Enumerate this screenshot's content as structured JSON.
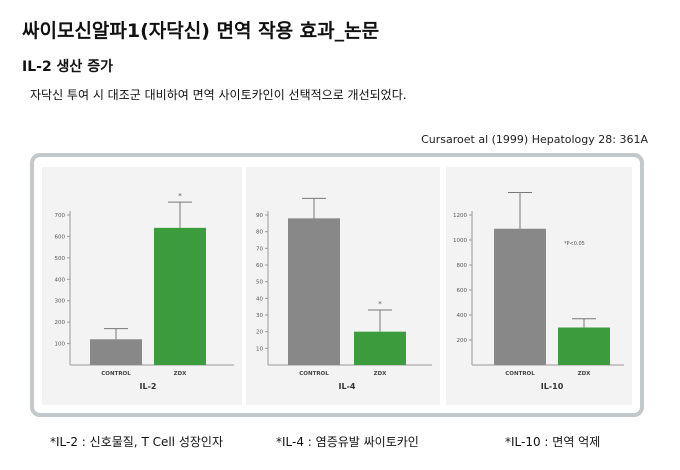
{
  "header": {
    "title": "싸이모신알파1(자닥신) 면역 작용 효과_논문",
    "subtitle": "IL-2 생산 증가",
    "description": "자닥신 투여 시 대조군 대비하여 면역 사이토카인이 선택적으로 개선되었다.",
    "citation": "Cursaroet al (1999) Hepatology 28: 361A"
  },
  "colors": {
    "control": "#888888",
    "zdx": "#3c9b3c",
    "frame": "#c3c8cc",
    "panel_bg": "#f3f3f3"
  },
  "chart_data": [
    {
      "type": "bar",
      "xlabel": "IL-2",
      "categories": [
        "CONTROL",
        "ZDX"
      ],
      "values": [
        120,
        640
      ],
      "error_upper": [
        170,
        760
      ],
      "significance": [
        "",
        "*"
      ],
      "ylim": [
        0,
        700
      ],
      "yticks": [
        100,
        200,
        300,
        400,
        500,
        600,
        700
      ],
      "ytick_labels": [
        "100",
        "200",
        "300",
        "400",
        "500",
        "600",
        "700"
      ],
      "note": ""
    },
    {
      "type": "bar",
      "xlabel": "IL-4",
      "categories": [
        "CONTROL",
        "ZDX"
      ],
      "values": [
        88,
        20
      ],
      "error_upper": [
        100,
        33
      ],
      "significance": [
        "",
        "*"
      ],
      "ylim": [
        0,
        90
      ],
      "yticks": [
        10,
        20,
        30,
        40,
        50,
        60,
        70,
        80,
        90
      ],
      "ytick_labels": [
        "10",
        "20",
        "30",
        "40",
        "50",
        "60",
        "70",
        "80",
        "90"
      ],
      "note": ""
    },
    {
      "type": "bar",
      "xlabel": "IL-10",
      "categories": [
        "CONTROL",
        "ZDX"
      ],
      "values": [
        1090,
        300
      ],
      "error_upper": [
        1380,
        370
      ],
      "significance": [
        "",
        ""
      ],
      "ylim": [
        0,
        1200
      ],
      "yticks": [
        200,
        400,
        600,
        800,
        1000,
        1200
      ],
      "ytick_labels": [
        "200",
        "400",
        "600",
        "800",
        "1000",
        "1200"
      ],
      "note": "*P<0.05"
    }
  ],
  "footnotes": {
    "il2": "*IL-2 : 신호물질, T Cell 성장인자",
    "il4": "*IL-4 : 염증유발 싸이토카인",
    "il10": "*IL-10 : 면역 억제"
  }
}
